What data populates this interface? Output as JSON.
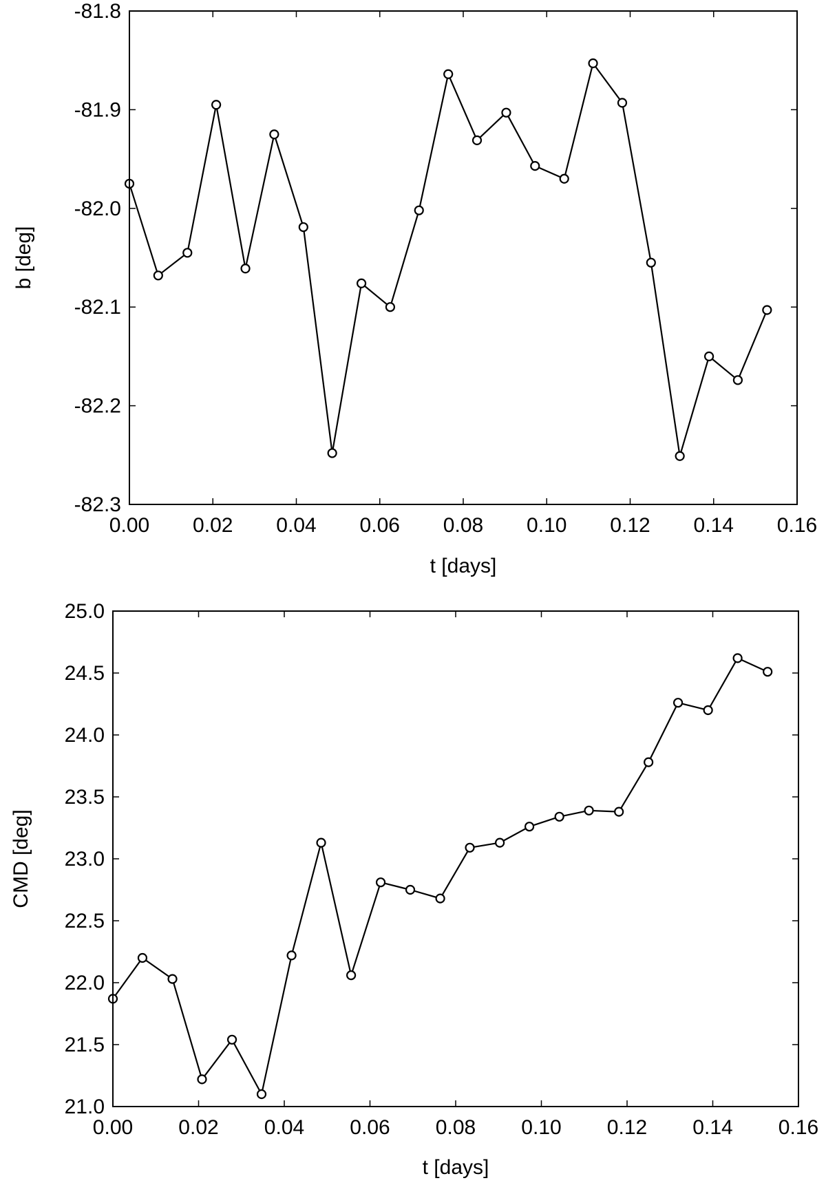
{
  "chart_data": [
    {
      "type": "line",
      "title": "",
      "xlabel": "t [days]",
      "ylabel": "b [deg]",
      "xlim": [
        0.0,
        0.16
      ],
      "ylim": [
        -82.3,
        -81.8
      ],
      "xticks": [
        "0.00",
        "0.02",
        "0.04",
        "0.06",
        "0.08",
        "0.10",
        "0.12",
        "0.14",
        "0.16"
      ],
      "yticks": [
        "-81.8",
        "-81.9",
        "-82.0",
        "-82.1",
        "-82.2",
        "-82.3"
      ],
      "grid": false,
      "markers": "open-circle",
      "x": [
        0.0,
        0.0069,
        0.0139,
        0.0208,
        0.0278,
        0.0347,
        0.0417,
        0.0486,
        0.0556,
        0.0625,
        0.0694,
        0.0764,
        0.0833,
        0.0903,
        0.0972,
        0.1042,
        0.1111,
        0.1181,
        0.125,
        0.1319,
        0.1389,
        0.1458,
        0.1528
      ],
      "y": [
        -81.975,
        -82.068,
        -82.045,
        -81.895,
        -82.061,
        -81.925,
        -82.019,
        -82.248,
        -82.076,
        -82.1,
        -82.002,
        -81.864,
        -81.931,
        -81.903,
        -81.957,
        -81.97,
        -81.853,
        -81.893,
        -82.055,
        -82.251,
        -82.15,
        -82.174,
        -82.103
      ]
    },
    {
      "type": "line",
      "title": "",
      "xlabel": "t [days]",
      "ylabel": "CMD [deg]",
      "xlim": [
        0.0,
        0.16
      ],
      "ylim": [
        21.0,
        25.0
      ],
      "xticks": [
        "0.00",
        "0.02",
        "0.04",
        "0.06",
        "0.08",
        "0.10",
        "0.12",
        "0.14",
        "0.16"
      ],
      "yticks": [
        "25.0",
        "24.5",
        "24.0",
        "23.5",
        "23.0",
        "22.5",
        "22.0",
        "21.5",
        "21.0"
      ],
      "grid": false,
      "markers": "open-circle",
      "x": [
        0.0,
        0.0069,
        0.0139,
        0.0208,
        0.0278,
        0.0347,
        0.0417,
        0.0486,
        0.0556,
        0.0625,
        0.0694,
        0.0764,
        0.0833,
        0.0903,
        0.0972,
        0.1042,
        0.1111,
        0.1181,
        0.125,
        0.1319,
        0.1389,
        0.1458,
        0.1528
      ],
      "y": [
        21.87,
        22.2,
        22.03,
        21.22,
        21.54,
        21.1,
        22.22,
        23.13,
        22.06,
        22.81,
        22.75,
        22.68,
        23.09,
        23.13,
        23.26,
        23.34,
        23.39,
        23.38,
        23.78,
        24.26,
        24.2,
        24.62,
        24.51
      ]
    }
  ]
}
